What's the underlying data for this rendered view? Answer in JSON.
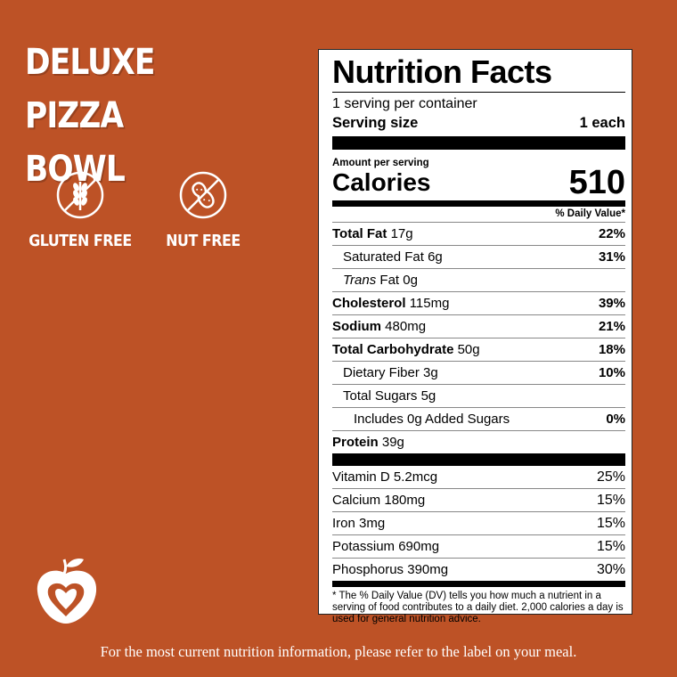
{
  "product": {
    "title_line1": "DELUXE PIZZA",
    "title_line2": "BOWL"
  },
  "badges": [
    {
      "label": "GLUTEN FREE",
      "icon": "wheat-crossed-icon"
    },
    {
      "label": "NUT FREE",
      "icon": "peanut-crossed-icon"
    }
  ],
  "colors": {
    "background": "#BD5226",
    "label_bg": "#FFFFFF",
    "text": "#000000"
  },
  "nutrition": {
    "heading": "Nutrition Facts",
    "servings": "1 serving per container",
    "serving_size_label": "Serving size",
    "serving_size_value": "1 each",
    "amount_per_serving": "Amount per serving",
    "calories_label": "Calories",
    "calories_value": "510",
    "dv_header": "% Daily Value*",
    "rows": [
      {
        "name": "Total Fat",
        "amount": "17g",
        "dv": "22%"
      },
      {
        "name": "Saturated Fat",
        "amount": "6g",
        "dv": "31%"
      },
      {
        "name": "Trans",
        "name_rest": "Fat",
        "amount": "0g",
        "dv": ""
      },
      {
        "name": "Cholesterol",
        "amount": "115mg",
        "dv": "39%"
      },
      {
        "name": "Sodium",
        "amount": "480mg",
        "dv": "21%"
      },
      {
        "name": "Total Carbohydrate",
        "amount": "50g",
        "dv": "18%"
      },
      {
        "name": "Dietary Fiber",
        "amount": "3g",
        "dv": "10%"
      },
      {
        "name": "Total Sugars",
        "amount": "5g",
        "dv": ""
      },
      {
        "name": "Includes 0g Added Sugars",
        "amount": "",
        "dv": "0%"
      },
      {
        "name": "Protein",
        "amount": "39g",
        "dv": ""
      }
    ],
    "vitamins": [
      {
        "name": "Vitamin D",
        "amount": "5.2mcg",
        "dv": "25%"
      },
      {
        "name": "Calcium",
        "amount": "180mg",
        "dv": "15%"
      },
      {
        "name": "Iron",
        "amount": "3mg",
        "dv": "15%"
      },
      {
        "name": "Potassium",
        "amount": "690mg",
        "dv": "15%"
      },
      {
        "name": "Phosphorus",
        "amount": "390mg",
        "dv": "30%"
      }
    ],
    "footnote": "* The % Daily Value (DV) tells you how much a nutrient in a serving of food contributes to a daily diet. 2,000 calories a day is used for general nutrition advice."
  },
  "footer": "For the most current nutrition information, please refer to the label on your meal."
}
